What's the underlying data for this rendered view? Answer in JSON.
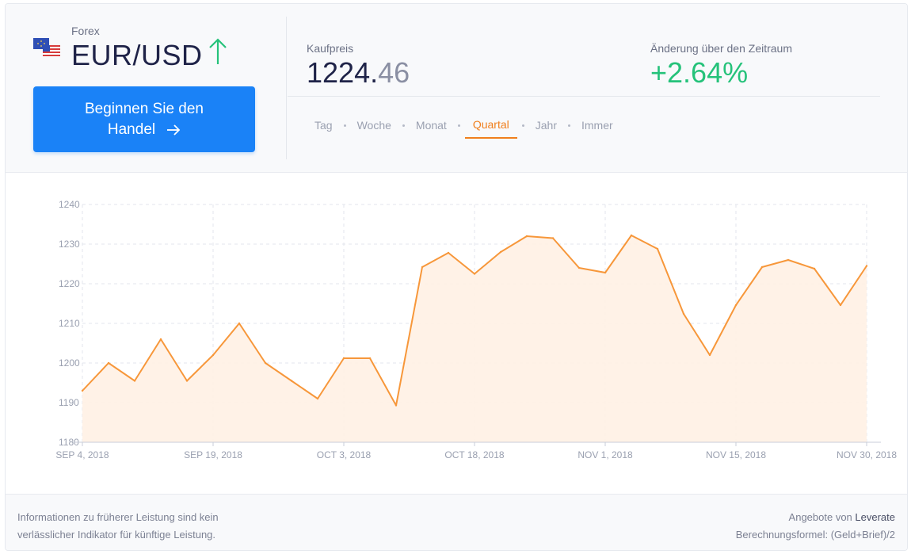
{
  "instrument": {
    "category": "Forex",
    "name": "EUR/USD",
    "flag_icon": "eu-us-flag-icon",
    "trend_icon": "arrow-up-icon",
    "trend_color": "#25c27a"
  },
  "cta": {
    "line1": "Beginnen Sie den",
    "line2": "Handel",
    "icon": "arrow-right-icon",
    "color": "#1a82f7"
  },
  "price": {
    "label": "Kaufpreis",
    "value_main": "1224.",
    "value_decimals": "46"
  },
  "change": {
    "label": "Änderung über den Zeitraum",
    "value": "+2.64%",
    "color": "#25c27a"
  },
  "tabs": [
    {
      "label": "Tag",
      "active": false
    },
    {
      "label": "Woche",
      "active": false
    },
    {
      "label": "Monat",
      "active": false
    },
    {
      "label": "Quartal",
      "active": true
    },
    {
      "label": "Jahr",
      "active": false
    },
    {
      "label": "Immer",
      "active": false
    }
  ],
  "chart_data": {
    "type": "area",
    "line_color": "#f7973a",
    "fill_color": "#fff1e4",
    "ylim": [
      1180,
      1240
    ],
    "yticks": [
      1180,
      1190,
      1200,
      1210,
      1220,
      1230,
      1240
    ],
    "xticks": [
      "SEP 4, 2018",
      "SEP 19, 2018",
      "OCT 3, 2018",
      "OCT 18, 2018",
      "NOV 1, 2018",
      "NOV 15, 2018",
      "NOV 30, 2018"
    ],
    "grid": true,
    "values": [
      1193,
      1200,
      1195.5,
      1206,
      1195.5,
      1202,
      1210,
      1200,
      1195.5,
      1191,
      1201.2,
      1201.2,
      1189.3,
      1224.2,
      1227.8,
      1222.5,
      1228,
      1232,
      1231.5,
      1224,
      1222.8,
      1232.2,
      1228.8,
      1212.4,
      1202,
      1214.6,
      1224.2,
      1226,
      1223.8,
      1214.6,
      1224.5
    ]
  },
  "footer": {
    "disclaimer_line1": "Informationen zu früherer Leistung sind kein",
    "disclaimer_line2": "verlässlicher Indikator für künftige Leistung.",
    "provider_prefix": "Angebote von",
    "provider_name": "Leverate",
    "formula": "Berechnungsformel: (Geld+Brief)/2"
  }
}
